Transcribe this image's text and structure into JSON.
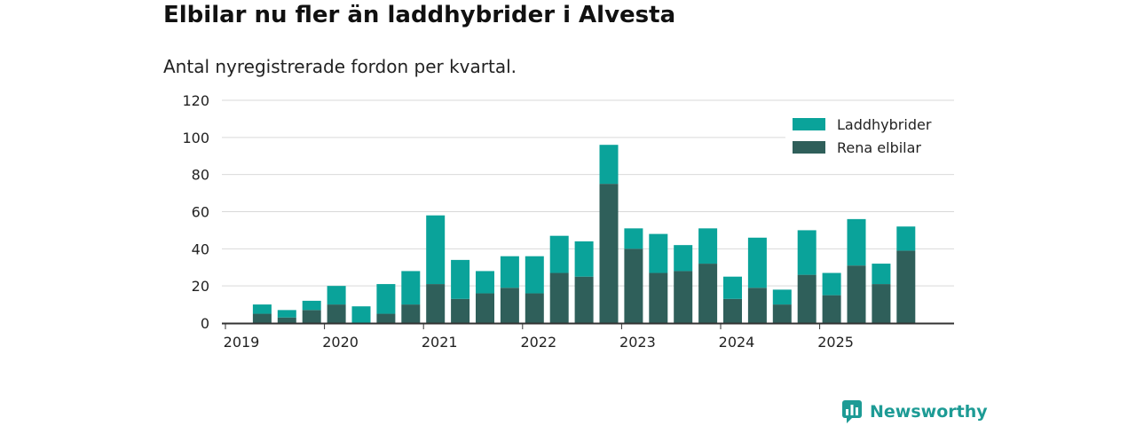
{
  "header": {
    "title": "Elbilar nu fler än laddhybrider i Alvesta",
    "subtitle": "Antal nyregistrerade fordon per kvartal."
  },
  "brand": {
    "name": "Newsworthy",
    "icon": "newsworthy-logo-icon"
  },
  "colors": {
    "laddhybrider": "#0aa39a",
    "elbilar": "#2f5f5a",
    "grid": "#d9d9d9",
    "axis": "#333333",
    "text": "#222222",
    "brand": "#1d9b95"
  },
  "chart_data": {
    "type": "bar",
    "stacked": true,
    "title": "Elbilar nu fler än laddhybrider i Alvesta",
    "subtitle": "Antal nyregistrerade fordon per kvartal.",
    "xlabel": "",
    "ylabel": "",
    "ylim": [
      0,
      120
    ],
    "yticks": [
      0,
      20,
      40,
      60,
      80,
      100,
      120
    ],
    "grid": true,
    "legend_position": "top-right",
    "x_tick_labels": [
      "2019",
      "2020",
      "2021",
      "2022",
      "2023",
      "2024",
      "2025"
    ],
    "categories": [
      "2019 Q1",
      "2019 Q2",
      "2019 Q3",
      "2019 Q4",
      "2020 Q1",
      "2020 Q2",
      "2020 Q3",
      "2020 Q4",
      "2021 Q1",
      "2021 Q2",
      "2021 Q3",
      "2021 Q4",
      "2022 Q1",
      "2022 Q2",
      "2022 Q3",
      "2022 Q4",
      "2023 Q1",
      "2023 Q2",
      "2023 Q3",
      "2023 Q4",
      "2024 Q1",
      "2024 Q2",
      "2024 Q3",
      "2024 Q4",
      "2025 Q1",
      "2025 Q2",
      "2025 Q3",
      "2025 Q4"
    ],
    "series": [
      {
        "name": "Rena elbilar",
        "color": "#2f5f5a",
        "values": [
          0,
          5,
          3,
          7,
          10,
          0,
          5,
          10,
          21,
          13,
          16,
          19,
          16,
          27,
          25,
          75,
          40,
          27,
          28,
          32,
          13,
          19,
          10,
          26,
          15,
          31,
          21,
          39
        ]
      },
      {
        "name": "Laddhybrider",
        "color": "#0aa39a",
        "values": [
          0,
          5,
          4,
          5,
          10,
          9,
          16,
          18,
          37,
          21,
          12,
          17,
          20,
          20,
          19,
          21,
          11,
          21,
          14,
          19,
          12,
          27,
          8,
          24,
          12,
          25,
          11,
          13
        ]
      }
    ],
    "legend": [
      "Laddhybrider",
      "Rena elbilar"
    ]
  }
}
